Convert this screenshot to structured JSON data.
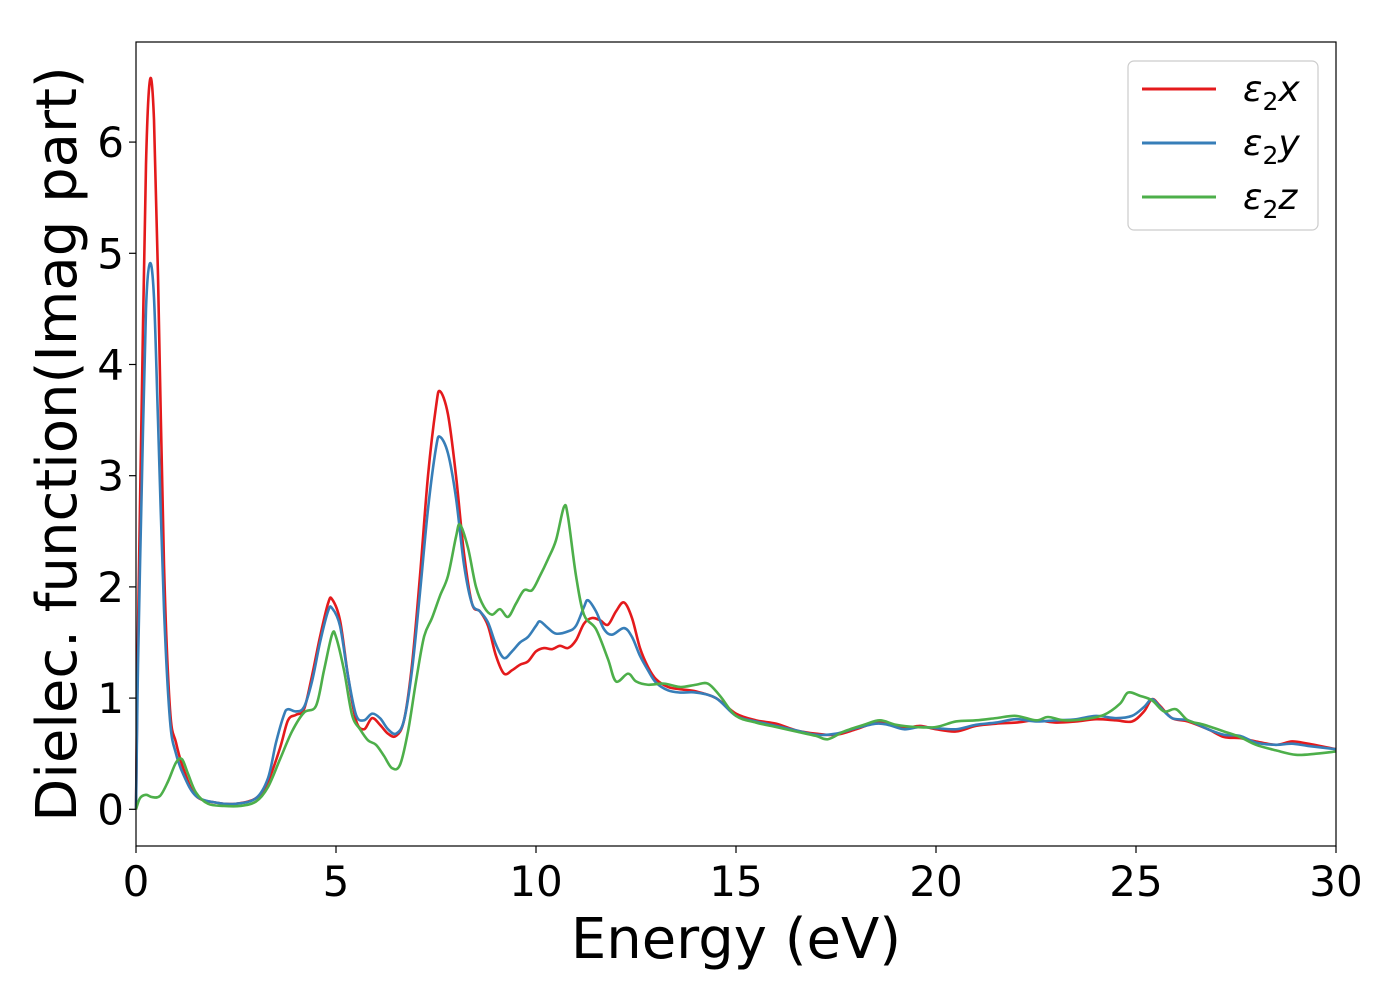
{
  "chart_data": {
    "type": "line",
    "xlabel": "Energy (eV)",
    "ylabel": "Dielec. function(Imag part)",
    "xlim": [
      0,
      30
    ],
    "ylim": [
      -0.33,
      6.9
    ],
    "xticks": [
      0,
      5,
      10,
      15,
      20,
      25,
      30
    ],
    "yticks": [
      0,
      1,
      2,
      3,
      4,
      5,
      6
    ],
    "grid": false,
    "legend_position": "top-right",
    "series": [
      {
        "name": "ε₂x",
        "legend": {
          "base": "ε",
          "sub": "2",
          "suffix": "x"
        },
        "color": "#e41a1c",
        "points": [
          [
            0,
            0
          ],
          [
            0.05,
            1.6
          ],
          [
            0.15,
            3.8
          ],
          [
            0.25,
            5.8
          ],
          [
            0.35,
            6.56
          ],
          [
            0.45,
            6.2
          ],
          [
            0.55,
            4.8
          ],
          [
            0.7,
            2.2
          ],
          [
            0.85,
            0.9
          ],
          [
            1.0,
            0.6
          ],
          [
            1.2,
            0.35
          ],
          [
            1.5,
            0.12
          ],
          [
            2.0,
            0.06
          ],
          [
            2.5,
            0.05
          ],
          [
            3.0,
            0.1
          ],
          [
            3.3,
            0.25
          ],
          [
            3.6,
            0.55
          ],
          [
            3.8,
            0.8
          ],
          [
            4.0,
            0.85
          ],
          [
            4.2,
            0.9
          ],
          [
            4.4,
            1.2
          ],
          [
            4.6,
            1.55
          ],
          [
            4.8,
            1.85
          ],
          [
            4.9,
            1.89
          ],
          [
            5.1,
            1.7
          ],
          [
            5.3,
            1.2
          ],
          [
            5.5,
            0.8
          ],
          [
            5.7,
            0.72
          ],
          [
            5.9,
            0.82
          ],
          [
            6.1,
            0.76
          ],
          [
            6.3,
            0.68
          ],
          [
            6.5,
            0.66
          ],
          [
            6.7,
            0.8
          ],
          [
            6.9,
            1.3
          ],
          [
            7.1,
            2.1
          ],
          [
            7.3,
            3.0
          ],
          [
            7.5,
            3.62
          ],
          [
            7.6,
            3.76
          ],
          [
            7.8,
            3.55
          ],
          [
            8.0,
            3.0
          ],
          [
            8.2,
            2.3
          ],
          [
            8.4,
            1.85
          ],
          [
            8.6,
            1.78
          ],
          [
            8.8,
            1.65
          ],
          [
            9.0,
            1.38
          ],
          [
            9.2,
            1.22
          ],
          [
            9.4,
            1.25
          ],
          [
            9.6,
            1.3
          ],
          [
            9.8,
            1.33
          ],
          [
            10.0,
            1.42
          ],
          [
            10.2,
            1.45
          ],
          [
            10.4,
            1.44
          ],
          [
            10.6,
            1.47
          ],
          [
            10.8,
            1.45
          ],
          [
            11.0,
            1.52
          ],
          [
            11.2,
            1.67
          ],
          [
            11.4,
            1.72
          ],
          [
            11.6,
            1.7
          ],
          [
            11.8,
            1.66
          ],
          [
            12.0,
            1.78
          ],
          [
            12.2,
            1.86
          ],
          [
            12.4,
            1.72
          ],
          [
            12.6,
            1.45
          ],
          [
            12.8,
            1.28
          ],
          [
            13.0,
            1.17
          ],
          [
            13.3,
            1.1
          ],
          [
            13.6,
            1.08
          ],
          [
            14.0,
            1.06
          ],
          [
            14.5,
            1.0
          ],
          [
            15.0,
            0.86
          ],
          [
            15.5,
            0.8
          ],
          [
            16.0,
            0.77
          ],
          [
            16.5,
            0.71
          ],
          [
            17.0,
            0.68
          ],
          [
            17.5,
            0.67
          ],
          [
            18.0,
            0.72
          ],
          [
            18.5,
            0.78
          ],
          [
            18.8,
            0.77
          ],
          [
            19.2,
            0.73
          ],
          [
            19.6,
            0.75
          ],
          [
            20.0,
            0.72
          ],
          [
            20.5,
            0.7
          ],
          [
            21.0,
            0.75
          ],
          [
            21.5,
            0.77
          ],
          [
            22.0,
            0.78
          ],
          [
            22.5,
            0.8
          ],
          [
            23.0,
            0.78
          ],
          [
            23.5,
            0.79
          ],
          [
            24.0,
            0.81
          ],
          [
            24.5,
            0.8
          ],
          [
            24.9,
            0.79
          ],
          [
            25.2,
            0.88
          ],
          [
            25.4,
            0.99
          ],
          [
            25.6,
            0.93
          ],
          [
            25.9,
            0.82
          ],
          [
            26.3,
            0.79
          ],
          [
            26.8,
            0.72
          ],
          [
            27.2,
            0.65
          ],
          [
            27.6,
            0.64
          ],
          [
            28.0,
            0.61
          ],
          [
            28.5,
            0.58
          ],
          [
            28.9,
            0.61
          ],
          [
            29.3,
            0.59
          ],
          [
            30.0,
            0.54
          ]
        ]
      },
      {
        "name": "ε₂y",
        "legend": {
          "base": "ε",
          "sub": "2",
          "suffix": "y"
        },
        "color": "#377eb8",
        "points": [
          [
            0,
            0
          ],
          [
            0.05,
            1.3
          ],
          [
            0.15,
            3.0
          ],
          [
            0.25,
            4.5
          ],
          [
            0.35,
            4.91
          ],
          [
            0.45,
            4.6
          ],
          [
            0.55,
            3.5
          ],
          [
            0.7,
            1.8
          ],
          [
            0.85,
            0.8
          ],
          [
            1.0,
            0.5
          ],
          [
            1.2,
            0.3
          ],
          [
            1.5,
            0.12
          ],
          [
            2.0,
            0.06
          ],
          [
            2.5,
            0.05
          ],
          [
            3.0,
            0.1
          ],
          [
            3.3,
            0.28
          ],
          [
            3.5,
            0.6
          ],
          [
            3.7,
            0.85
          ],
          [
            3.8,
            0.9
          ],
          [
            4.0,
            0.88
          ],
          [
            4.2,
            0.92
          ],
          [
            4.4,
            1.15
          ],
          [
            4.6,
            1.5
          ],
          [
            4.8,
            1.78
          ],
          [
            4.9,
            1.81
          ],
          [
            5.1,
            1.65
          ],
          [
            5.3,
            1.2
          ],
          [
            5.5,
            0.85
          ],
          [
            5.7,
            0.8
          ],
          [
            5.9,
            0.86
          ],
          [
            6.1,
            0.82
          ],
          [
            6.3,
            0.72
          ],
          [
            6.5,
            0.68
          ],
          [
            6.7,
            0.8
          ],
          [
            6.9,
            1.25
          ],
          [
            7.1,
            1.95
          ],
          [
            7.3,
            2.7
          ],
          [
            7.5,
            3.25
          ],
          [
            7.6,
            3.35
          ],
          [
            7.8,
            3.2
          ],
          [
            8.0,
            2.8
          ],
          [
            8.2,
            2.2
          ],
          [
            8.4,
            1.85
          ],
          [
            8.6,
            1.78
          ],
          [
            8.8,
            1.68
          ],
          [
            9.0,
            1.48
          ],
          [
            9.2,
            1.36
          ],
          [
            9.4,
            1.42
          ],
          [
            9.6,
            1.5
          ],
          [
            9.8,
            1.55
          ],
          [
            10.0,
            1.65
          ],
          [
            10.1,
            1.69
          ],
          [
            10.3,
            1.63
          ],
          [
            10.5,
            1.58
          ],
          [
            10.8,
            1.6
          ],
          [
            11.0,
            1.65
          ],
          [
            11.2,
            1.82
          ],
          [
            11.3,
            1.88
          ],
          [
            11.5,
            1.78
          ],
          [
            11.7,
            1.62
          ],
          [
            11.9,
            1.57
          ],
          [
            12.2,
            1.63
          ],
          [
            12.4,
            1.55
          ],
          [
            12.6,
            1.38
          ],
          [
            12.8,
            1.25
          ],
          [
            13.0,
            1.14
          ],
          [
            13.3,
            1.07
          ],
          [
            13.6,
            1.05
          ],
          [
            14.0,
            1.05
          ],
          [
            14.5,
            1.0
          ],
          [
            15.0,
            0.84
          ],
          [
            15.5,
            0.79
          ],
          [
            16.0,
            0.75
          ],
          [
            16.5,
            0.71
          ],
          [
            17.0,
            0.67
          ],
          [
            17.5,
            0.68
          ],
          [
            18.0,
            0.73
          ],
          [
            18.5,
            0.77
          ],
          [
            18.8,
            0.76
          ],
          [
            19.2,
            0.72
          ],
          [
            19.6,
            0.74
          ],
          [
            20.0,
            0.73
          ],
          [
            20.5,
            0.72
          ],
          [
            21.0,
            0.76
          ],
          [
            21.5,
            0.78
          ],
          [
            22.0,
            0.81
          ],
          [
            22.5,
            0.79
          ],
          [
            23.0,
            0.8
          ],
          [
            23.5,
            0.81
          ],
          [
            24.0,
            0.84
          ],
          [
            24.5,
            0.82
          ],
          [
            24.9,
            0.84
          ],
          [
            25.2,
            0.92
          ],
          [
            25.4,
            0.99
          ],
          [
            25.6,
            0.92
          ],
          [
            25.9,
            0.82
          ],
          [
            26.3,
            0.8
          ],
          [
            26.8,
            0.72
          ],
          [
            27.2,
            0.67
          ],
          [
            27.6,
            0.66
          ],
          [
            28.0,
            0.6
          ],
          [
            28.5,
            0.58
          ],
          [
            28.9,
            0.59
          ],
          [
            29.3,
            0.57
          ],
          [
            30.0,
            0.54
          ]
        ]
      },
      {
        "name": "ε₂z",
        "legend": {
          "base": "ε",
          "sub": "2",
          "suffix": "z"
        },
        "color": "#4daf4a",
        "points": [
          [
            0,
            0
          ],
          [
            0.1,
            0.1
          ],
          [
            0.25,
            0.13
          ],
          [
            0.4,
            0.11
          ],
          [
            0.6,
            0.12
          ],
          [
            0.8,
            0.25
          ],
          [
            1.0,
            0.42
          ],
          [
            1.15,
            0.45
          ],
          [
            1.3,
            0.32
          ],
          [
            1.5,
            0.15
          ],
          [
            1.8,
            0.05
          ],
          [
            2.2,
            0.03
          ],
          [
            2.6,
            0.03
          ],
          [
            3.0,
            0.07
          ],
          [
            3.3,
            0.2
          ],
          [
            3.6,
            0.45
          ],
          [
            3.9,
            0.7
          ],
          [
            4.2,
            0.87
          ],
          [
            4.5,
            0.93
          ],
          [
            4.7,
            1.25
          ],
          [
            4.9,
            1.57
          ],
          [
            5.0,
            1.55
          ],
          [
            5.2,
            1.25
          ],
          [
            5.4,
            0.85
          ],
          [
            5.6,
            0.72
          ],
          [
            5.8,
            0.62
          ],
          [
            6.0,
            0.58
          ],
          [
            6.2,
            0.48
          ],
          [
            6.4,
            0.37
          ],
          [
            6.6,
            0.4
          ],
          [
            6.8,
            0.7
          ],
          [
            7.0,
            1.15
          ],
          [
            7.2,
            1.55
          ],
          [
            7.4,
            1.72
          ],
          [
            7.6,
            1.92
          ],
          [
            7.8,
            2.1
          ],
          [
            8.0,
            2.45
          ],
          [
            8.1,
            2.56
          ],
          [
            8.3,
            2.35
          ],
          [
            8.5,
            2.0
          ],
          [
            8.7,
            1.82
          ],
          [
            8.9,
            1.75
          ],
          [
            9.1,
            1.8
          ],
          [
            9.3,
            1.73
          ],
          [
            9.5,
            1.85
          ],
          [
            9.7,
            1.97
          ],
          [
            9.9,
            1.97
          ],
          [
            10.1,
            2.1
          ],
          [
            10.3,
            2.25
          ],
          [
            10.5,
            2.42
          ],
          [
            10.7,
            2.72
          ],
          [
            10.8,
            2.63
          ],
          [
            11.0,
            2.1
          ],
          [
            11.2,
            1.75
          ],
          [
            11.5,
            1.62
          ],
          [
            11.8,
            1.35
          ],
          [
            12.0,
            1.15
          ],
          [
            12.3,
            1.22
          ],
          [
            12.5,
            1.15
          ],
          [
            12.8,
            1.12
          ],
          [
            13.2,
            1.13
          ],
          [
            13.6,
            1.1
          ],
          [
            14.0,
            1.12
          ],
          [
            14.3,
            1.13
          ],
          [
            14.6,
            1.02
          ],
          [
            15.0,
            0.84
          ],
          [
            15.5,
            0.78
          ],
          [
            16.0,
            0.74
          ],
          [
            16.5,
            0.7
          ],
          [
            17.0,
            0.66
          ],
          [
            17.3,
            0.63
          ],
          [
            17.7,
            0.7
          ],
          [
            18.2,
            0.76
          ],
          [
            18.6,
            0.8
          ],
          [
            19.0,
            0.76
          ],
          [
            19.5,
            0.74
          ],
          [
            20.0,
            0.74
          ],
          [
            20.5,
            0.79
          ],
          [
            21.0,
            0.8
          ],
          [
            21.5,
            0.82
          ],
          [
            22.0,
            0.84
          ],
          [
            22.5,
            0.8
          ],
          [
            22.8,
            0.83
          ],
          [
            23.2,
            0.8
          ],
          [
            23.7,
            0.81
          ],
          [
            24.2,
            0.85
          ],
          [
            24.6,
            0.95
          ],
          [
            24.8,
            1.05
          ],
          [
            25.1,
            1.02
          ],
          [
            25.4,
            0.98
          ],
          [
            25.7,
            0.88
          ],
          [
            26.0,
            0.9
          ],
          [
            26.3,
            0.8
          ],
          [
            26.7,
            0.76
          ],
          [
            27.2,
            0.7
          ],
          [
            27.6,
            0.65
          ],
          [
            28.0,
            0.58
          ],
          [
            28.5,
            0.53
          ],
          [
            29.0,
            0.49
          ],
          [
            29.5,
            0.5
          ],
          [
            30.0,
            0.52
          ]
        ]
      }
    ]
  }
}
